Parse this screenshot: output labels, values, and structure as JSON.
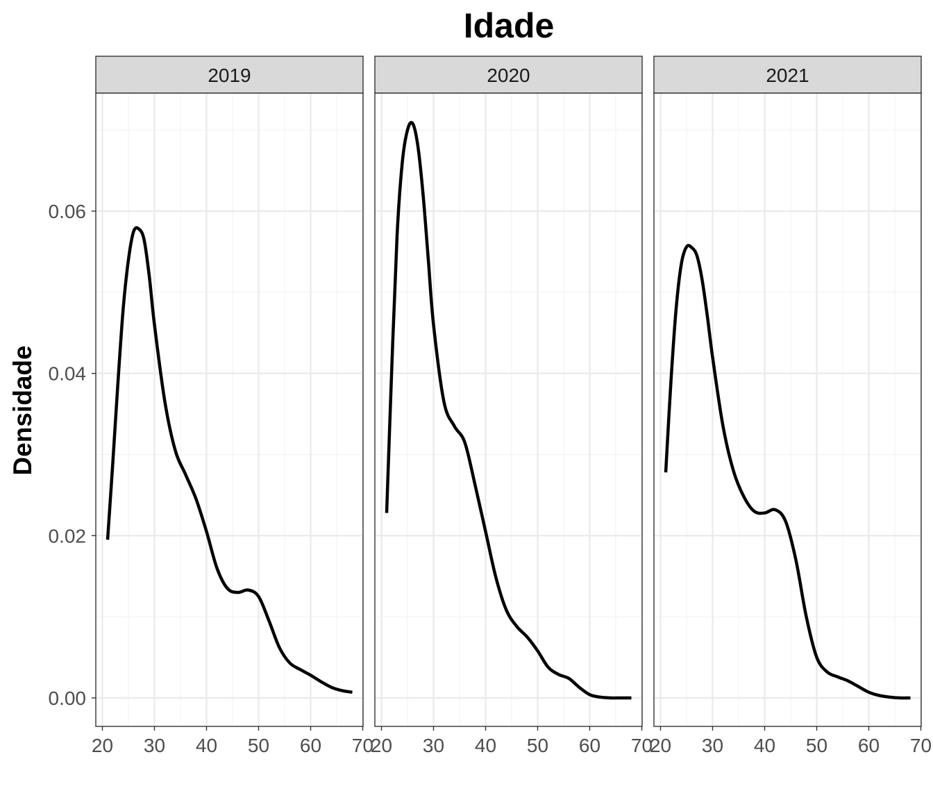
{
  "chart_data": {
    "type": "line",
    "title": "Idade",
    "xlabel": "",
    "ylabel": "Densidade",
    "xlim": [
      21,
      68
    ],
    "ylim": [
      0,
      0.07
    ],
    "x_ticks": [
      20,
      30,
      40,
      50,
      60,
      70
    ],
    "y_ticks": [
      0.0,
      0.02,
      0.04,
      0.06
    ],
    "y_tick_labels": [
      "0.00",
      "0.02",
      "0.04",
      "0.06"
    ],
    "grid": true,
    "line_color": "#000000",
    "facets": [
      {
        "name": "2019",
        "x": [
          21,
          22,
          23,
          24,
          25,
          26,
          27,
          28,
          29,
          30,
          32,
          34,
          36,
          38,
          40,
          42,
          44,
          46,
          48,
          50,
          52,
          54,
          56,
          58,
          60,
          62,
          64,
          66,
          68
        ],
        "y": [
          0.0195,
          0.029,
          0.039,
          0.048,
          0.054,
          0.0575,
          0.0578,
          0.0565,
          0.052,
          0.046,
          0.0365,
          0.0305,
          0.0275,
          0.0245,
          0.0205,
          0.016,
          0.0135,
          0.013,
          0.0133,
          0.0125,
          0.0095,
          0.0062,
          0.0043,
          0.0035,
          0.0028,
          0.002,
          0.0013,
          0.0009,
          0.0007
        ]
      },
      {
        "name": "2020",
        "x": [
          21,
          22,
          23,
          24,
          25,
          26,
          27,
          28,
          29,
          30,
          32,
          34,
          36,
          38,
          40,
          42,
          44,
          46,
          48,
          50,
          52,
          54,
          56,
          58,
          60,
          62,
          64,
          66,
          68
        ],
        "y": [
          0.0228,
          0.041,
          0.057,
          0.066,
          0.07,
          0.0708,
          0.068,
          0.062,
          0.054,
          0.046,
          0.0365,
          0.0335,
          0.0315,
          0.0262,
          0.0205,
          0.0148,
          0.0108,
          0.0088,
          0.0075,
          0.0058,
          0.0038,
          0.0029,
          0.0024,
          0.0013,
          0.0004,
          0.0001,
          0.0,
          0.0,
          0.0
        ]
      },
      {
        "name": "2021",
        "x": [
          21,
          22,
          23,
          24,
          25,
          26,
          27,
          28,
          29,
          30,
          32,
          34,
          36,
          38,
          40,
          42,
          44,
          46,
          48,
          50,
          52,
          54,
          56,
          58,
          60,
          62,
          64,
          66,
          68
        ],
        "y": [
          0.0278,
          0.039,
          0.048,
          0.0535,
          0.0556,
          0.0555,
          0.0545,
          0.0515,
          0.047,
          0.042,
          0.0335,
          0.028,
          0.0248,
          0.023,
          0.0228,
          0.0232,
          0.0218,
          0.017,
          0.01,
          0.005,
          0.0032,
          0.0026,
          0.0021,
          0.0014,
          0.0007,
          0.0003,
          0.0001,
          0.0,
          0.0
        ]
      }
    ]
  }
}
